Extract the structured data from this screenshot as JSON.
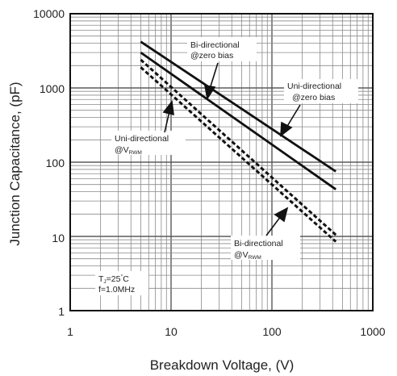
{
  "chart_data": {
    "type": "line",
    "xscale": "log",
    "yscale": "log",
    "xlim": [
      1,
      1000
    ],
    "ylim": [
      1,
      10000
    ],
    "grid": true,
    "xlabel": "Breakdown Voltage, (V)",
    "ylabel": "Junction Capacitance, (pF)",
    "x_tick_labels": [
      "1",
      "10",
      "100",
      "1000"
    ],
    "y_tick_labels": [
      "1",
      "10",
      "100",
      "1000",
      "10000"
    ],
    "series": [
      {
        "name": "Bi-directional @zero bias",
        "style": "solid",
        "x": [
          5,
          430
        ],
        "y": [
          4200,
          75
        ]
      },
      {
        "name": "Uni-directional @zero bias",
        "style": "solid",
        "x": [
          5,
          430
        ],
        "y": [
          3000,
          43
        ]
      },
      {
        "name": "Bi-directional @VRWM",
        "style": "dashed",
        "x": [
          5,
          430
        ],
        "y": [
          2400,
          10.5
        ]
      },
      {
        "name": "Uni-directional @VRWM",
        "style": "dashed",
        "x": [
          5,
          430
        ],
        "y": [
          1900,
          8.5
        ]
      }
    ],
    "annotations": {
      "bi_zero": [
        "Bi-directional",
        "@zero bias"
      ],
      "uni_zero": [
        "Uni-directional",
        "@zero bias"
      ],
      "uni_vrwm": [
        "Uni-directional",
        "@V",
        "RWM"
      ],
      "bi_vrwm": [
        "Bi-directional",
        "@V",
        "RWM"
      ]
    },
    "conditions": [
      "T",
      "J",
      "=25",
      "°",
      "C",
      "f=1.0MHz"
    ]
  }
}
